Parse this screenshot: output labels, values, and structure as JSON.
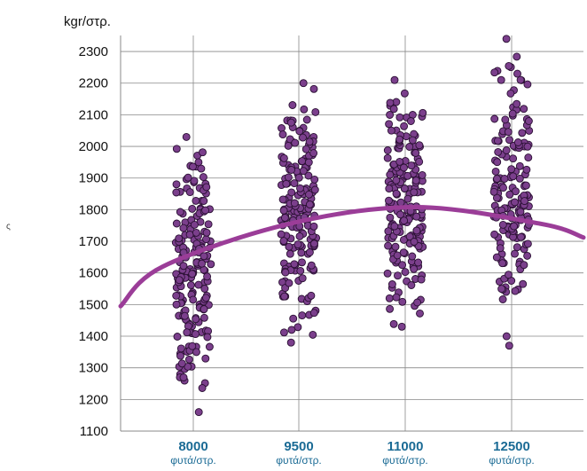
{
  "chart_data": {
    "type": "scatter",
    "ylabel": "kgr/στρ.",
    "ylim": [
      1100,
      2350
    ],
    "yticks": [
      1100,
      1200,
      1300,
      1400,
      1500,
      1600,
      1700,
      1800,
      1900,
      2000,
      2100,
      2200,
      2300
    ],
    "categories": [
      "8000",
      "9500",
      "11000",
      "12500"
    ],
    "category_sublabel": "φυτά/στρ.",
    "side_mark": "ς",
    "grid": true,
    "colors": {
      "points_fill": "#7b3f8c",
      "points_stroke": "#2a1033",
      "curve": "#9b3d98",
      "category_text": "#1b6b95",
      "grid": "#888888"
    },
    "point_ranges": [
      {
        "category": "8000",
        "min": 1160,
        "max": 2030,
        "count": 190
      },
      {
        "category": "9500",
        "min": 1380,
        "max": 2200,
        "count": 180
      },
      {
        "category": "11000",
        "min": 1430,
        "max": 2210,
        "count": 190
      },
      {
        "category": "12500",
        "min": 1370,
        "max": 2340,
        "count": 170
      }
    ],
    "trend_curve": {
      "x": [
        7500,
        8000,
        9500,
        11000,
        12500,
        13000
      ],
      "y": [
        1495,
        1620,
        1755,
        1808,
        1755,
        1712
      ]
    }
  }
}
